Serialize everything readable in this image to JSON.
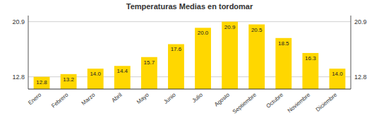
{
  "chart_data": {
    "type": "bar",
    "title": "Temperaturas Medias en tordomar",
    "categories": [
      "Enero",
      "Febrero",
      "Marzo",
      "Abril",
      "Mayo",
      "Junio",
      "Julio",
      "Agosto",
      "Septiembre",
      "Octubre",
      "Noviembre",
      "Diciembre"
    ],
    "values": [
      12.8,
      13.2,
      14.0,
      14.4,
      15.7,
      17.6,
      20.0,
      20.9,
      20.5,
      18.5,
      16.3,
      14.0
    ],
    "value_labels": [
      "12.8",
      "13.2",
      "14.0",
      "14.4",
      "15.7",
      "17.6",
      "20.0",
      "20.9",
      "20.5",
      "18.5",
      "16.3",
      "14.0"
    ],
    "color": "#FFD700",
    "ylim": [
      11.0,
      21.8
    ],
    "yticks": [
      12.8,
      20.9
    ],
    "y2lim": [
      11.0,
      21.8
    ],
    "y2ticks": [
      12.8,
      20.9
    ],
    "grid": true,
    "data_labels": true
  }
}
